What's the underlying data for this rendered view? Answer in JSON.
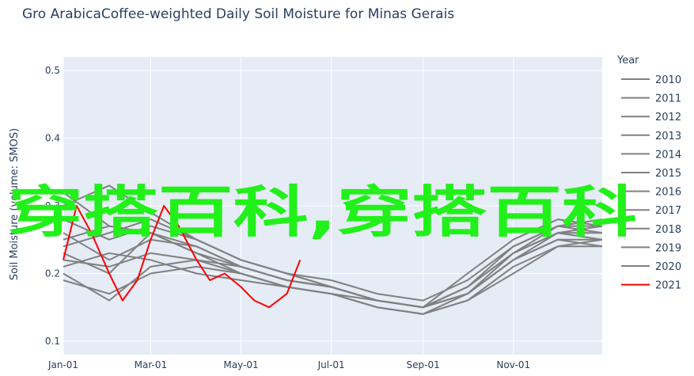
{
  "chart_data": {
    "type": "line",
    "title": "Gro ArabicaCoffee-weighted Daily Soil Moisture for Minas Gerais",
    "xlabel": "",
    "ylabel": "Soil Moisture (volume: SMOS)",
    "x_tick_labels": [
      "Jan-01",
      "Mar-01",
      "May-01",
      "Jul-01",
      "Sep-01",
      "Nov-01"
    ],
    "y_ticks": [
      0.1,
      0.2,
      0.3,
      0.4,
      0.5
    ],
    "ylim": [
      0.08,
      0.52
    ],
    "legend_title": "Year",
    "legend_position": "right",
    "grid": true,
    "colors": {
      "plot_bg": "#e5ecf6",
      "grid": "#ffffff",
      "history": "#808080",
      "current": "#ff0000"
    },
    "series": [
      {
        "name": "2010",
        "color": "#808080",
        "points": [
          [
            "Jan-01",
            0.21
          ],
          [
            "Feb-01",
            0.23
          ],
          [
            "Mar-01",
            0.22
          ],
          [
            "Apr-01",
            0.2
          ],
          [
            "May-01",
            0.19
          ],
          [
            "Jun-01",
            0.18
          ],
          [
            "Jul-01",
            0.17
          ],
          [
            "Aug-01",
            0.15
          ],
          [
            "Sep-01",
            0.14
          ],
          [
            "Oct-01",
            0.16
          ],
          [
            "Nov-01",
            0.2
          ],
          [
            "Dec-01",
            0.24
          ],
          [
            "Dec-31",
            0.25
          ]
        ]
      },
      {
        "name": "2011",
        "color": "#808080",
        "points": [
          [
            "Jan-01",
            0.25
          ],
          [
            "Feb-01",
            0.27
          ],
          [
            "Mar-01",
            0.26
          ],
          [
            "Apr-01",
            0.23
          ],
          [
            "May-01",
            0.2
          ],
          [
            "Jun-01",
            0.18
          ],
          [
            "Jul-01",
            0.17
          ],
          [
            "Aug-01",
            0.16
          ],
          [
            "Sep-01",
            0.15
          ],
          [
            "Oct-01",
            0.17
          ],
          [
            "Nov-01",
            0.22
          ],
          [
            "Dec-01",
            0.26
          ],
          [
            "Dec-31",
            0.27
          ]
        ]
      },
      {
        "name": "2012",
        "color": "#808080",
        "points": [
          [
            "Jan-01",
            0.26
          ],
          [
            "Feb-01",
            0.22
          ],
          [
            "Mar-01",
            0.25
          ],
          [
            "Apr-01",
            0.24
          ],
          [
            "May-01",
            0.21
          ],
          [
            "Jun-01",
            0.19
          ],
          [
            "Jul-01",
            0.18
          ],
          [
            "Aug-01",
            0.16
          ],
          [
            "Sep-01",
            0.15
          ],
          [
            "Oct-01",
            0.18
          ],
          [
            "Nov-01",
            0.23
          ],
          [
            "Dec-01",
            0.27
          ],
          [
            "Dec-31",
            0.28
          ]
        ]
      },
      {
        "name": "2013",
        "color": "#808080",
        "points": [
          [
            "Jan-01",
            0.28
          ],
          [
            "Feb-01",
            0.25
          ],
          [
            "Mar-01",
            0.27
          ],
          [
            "Apr-01",
            0.25
          ],
          [
            "May-01",
            0.22
          ],
          [
            "Jun-01",
            0.2
          ],
          [
            "Jul-01",
            0.19
          ],
          [
            "Aug-01",
            0.17
          ],
          [
            "Sep-01",
            0.16
          ],
          [
            "Oct-01",
            0.19
          ],
          [
            "Nov-01",
            0.24
          ],
          [
            "Dec-01",
            0.27
          ],
          [
            "Dec-31",
            0.26
          ]
        ]
      },
      {
        "name": "2014",
        "color": "#808080",
        "points": [
          [
            "Jan-01",
            0.19
          ],
          [
            "Feb-01",
            0.17
          ],
          [
            "Mar-01",
            0.2
          ],
          [
            "Apr-01",
            0.21
          ],
          [
            "May-01",
            0.2
          ],
          [
            "Jun-01",
            0.18
          ],
          [
            "Jul-01",
            0.17
          ],
          [
            "Aug-01",
            0.15
          ],
          [
            "Sep-01",
            0.14
          ],
          [
            "Oct-01",
            0.16
          ],
          [
            "Nov-01",
            0.21
          ],
          [
            "Dec-01",
            0.24
          ],
          [
            "Dec-31",
            0.24
          ]
        ]
      },
      {
        "name": "2015",
        "color": "#808080",
        "points": [
          [
            "Jan-01",
            0.2
          ],
          [
            "Feb-01",
            0.16
          ],
          [
            "Mar-01",
            0.21
          ],
          [
            "Apr-01",
            0.22
          ],
          [
            "May-01",
            0.21
          ],
          [
            "Jun-01",
            0.19
          ],
          [
            "Jul-01",
            0.18
          ],
          [
            "Aug-01",
            0.16
          ],
          [
            "Sep-01",
            0.15
          ],
          [
            "Oct-01",
            0.17
          ],
          [
            "Nov-01",
            0.22
          ],
          [
            "Dec-01",
            0.25
          ],
          [
            "Dec-31",
            0.25
          ]
        ]
      },
      {
        "name": "2016",
        "color": "#808080",
        "points": [
          [
            "Jan-01",
            0.32
          ],
          [
            "Feb-01",
            0.27
          ],
          [
            "Mar-01",
            0.26
          ],
          [
            "Apr-01",
            0.23
          ],
          [
            "May-01",
            0.21
          ],
          [
            "Jun-01",
            0.19
          ],
          [
            "Jul-01",
            0.18
          ],
          [
            "Aug-01",
            0.16
          ],
          [
            "Sep-01",
            0.15
          ],
          [
            "Oct-01",
            0.2
          ],
          [
            "Nov-01",
            0.25
          ],
          [
            "Dec-01",
            0.28
          ],
          [
            "Dec-31",
            0.27
          ]
        ]
      },
      {
        "name": "2017",
        "color": "#808080",
        "points": [
          [
            "Jan-01",
            0.22
          ],
          [
            "Feb-01",
            0.21
          ],
          [
            "Mar-01",
            0.23
          ],
          [
            "Apr-01",
            0.22
          ],
          [
            "May-01",
            0.2
          ],
          [
            "Jun-01",
            0.18
          ],
          [
            "Jul-01",
            0.17
          ],
          [
            "Aug-01",
            0.15
          ],
          [
            "Sep-01",
            0.14
          ],
          [
            "Oct-01",
            0.17
          ],
          [
            "Nov-01",
            0.23
          ],
          [
            "Dec-01",
            0.26
          ],
          [
            "Dec-31",
            0.25
          ]
        ]
      },
      {
        "name": "2018",
        "color": "#808080",
        "points": [
          [
            "Jan-01",
            0.24
          ],
          [
            "Feb-01",
            0.26
          ],
          [
            "Mar-01",
            0.28
          ],
          [
            "Apr-01",
            0.25
          ],
          [
            "May-01",
            0.22
          ],
          [
            "Jun-01",
            0.2
          ],
          [
            "Jul-01",
            0.18
          ],
          [
            "Aug-01",
            0.16
          ],
          [
            "Sep-01",
            0.15
          ],
          [
            "Oct-01",
            0.18
          ],
          [
            "Nov-01",
            0.24
          ],
          [
            "Dec-01",
            0.27
          ],
          [
            "Dec-31",
            0.27
          ]
        ]
      },
      {
        "name": "2019",
        "color": "#808080",
        "points": [
          [
            "Jan-01",
            0.23
          ],
          [
            "Feb-01",
            0.2
          ],
          [
            "Mar-01",
            0.26
          ],
          [
            "Apr-01",
            0.24
          ],
          [
            "May-01",
            0.21
          ],
          [
            "Jun-01",
            0.19
          ],
          [
            "Jul-01",
            0.18
          ],
          [
            "Aug-01",
            0.16
          ],
          [
            "Sep-01",
            0.15
          ],
          [
            "Oct-01",
            0.17
          ],
          [
            "Nov-01",
            0.22
          ],
          [
            "Dec-01",
            0.25
          ],
          [
            "Dec-31",
            0.24
          ]
        ]
      },
      {
        "name": "2020",
        "color": "#808080",
        "points": [
          [
            "Jan-01",
            0.3
          ],
          [
            "Feb-01",
            0.33
          ],
          [
            "Mar-01",
            0.29
          ],
          [
            "Apr-01",
            0.25
          ],
          [
            "May-01",
            0.22
          ],
          [
            "Jun-01",
            0.2
          ],
          [
            "Jul-01",
            0.18
          ],
          [
            "Aug-01",
            0.16
          ],
          [
            "Sep-01",
            0.15
          ],
          [
            "Oct-01",
            0.18
          ],
          [
            "Nov-01",
            0.23
          ],
          [
            "Dec-01",
            0.26
          ],
          [
            "Dec-31",
            0.26
          ]
        ]
      },
      {
        "name": "2021",
        "color": "#ff0000",
        "points": [
          [
            "Jan-01",
            0.22
          ],
          [
            "Jan-10",
            0.3
          ],
          [
            "Jan-20",
            0.26
          ],
          [
            "Feb-01",
            0.2
          ],
          [
            "Feb-10",
            0.16
          ],
          [
            "Feb-20",
            0.19
          ],
          [
            "Mar-01",
            0.25
          ],
          [
            "Mar-10",
            0.3
          ],
          [
            "Mar-20",
            0.27
          ],
          [
            "Apr-01",
            0.22
          ],
          [
            "Apr-10",
            0.19
          ],
          [
            "Apr-20",
            0.2
          ],
          [
            "May-01",
            0.18
          ],
          [
            "May-10",
            0.16
          ],
          [
            "May-20",
            0.15
          ],
          [
            "Jun-01",
            0.17
          ],
          [
            "Jun-10",
            0.22
          ]
        ]
      }
    ]
  },
  "watermark": {
    "text": "穿搭百科,穿搭百科"
  }
}
